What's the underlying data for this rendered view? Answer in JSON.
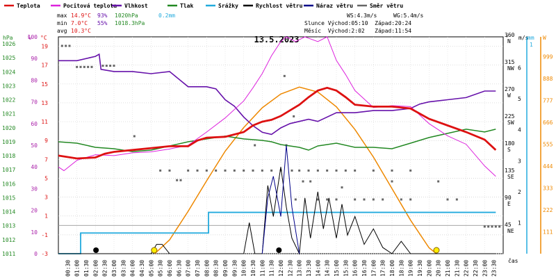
{
  "chart_data": {
    "type": "line",
    "title": "13.5.2023",
    "legend": [
      {
        "name": "Teplota",
        "color": "#dd1111"
      },
      {
        "name": "Pocitová teplota",
        "color": "#dd22dd"
      },
      {
        "name": "Vlhkost",
        "color": "#6611aa"
      },
      {
        "name": "Tlak",
        "color": "#228822"
      },
      {
        "name": "Srážky",
        "color": "#22aadd"
      },
      {
        "name": "Rychlost větru",
        "color": "#000000"
      },
      {
        "name": "Náraz větru",
        "color": "#000088"
      },
      {
        "name": "Směr větru",
        "color": "#666666"
      }
    ],
    "stats": {
      "max_label": "max",
      "max_temp": "14.9°C",
      "max_hum": "93%",
      "max_press": "1020hPa",
      "rain": "0.2mm",
      "min_label": "min",
      "min_temp": "7.0°C",
      "min_hum": "55%",
      "min_press": "1018.3hPa",
      "avg_label": "avg",
      "avg_temp": "10.3°C",
      "ws": "WS:4.3m/s",
      "wg": "WG:5.4m/s",
      "sun": "Slunce Východ:05:10  Západ:20:24",
      "moon": "Měsíc  Východ:2:02   Západ:11:54"
    },
    "axes": {
      "hpa_label": "hPa",
      "hum_label": "%",
      "temp_label": "°C",
      "hpa_ticks": [
        "1026",
        "1025",
        "1024",
        "1023",
        "1022",
        "1021",
        "1020",
        "1019",
        "1018",
        "1017",
        "1016",
        "1015",
        "1014",
        "1013",
        "1012",
        "1011"
      ],
      "hum_ticks": [
        "100",
        "90",
        "80",
        "70",
        "60",
        "50",
        "40",
        "30",
        "20",
        "10",
        "0"
      ],
      "temp_ticks": [
        "19",
        "17",
        "15",
        "13",
        "11",
        "9",
        "7",
        "5",
        "3",
        "1",
        "-1",
        "-3"
      ],
      "dir_label": "°",
      "dir_ticks": [
        {
          "v": "360",
          "d": "N"
        },
        {
          "v": "315",
          "d": "NW"
        },
        {
          "v": "270",
          "d": "W"
        },
        {
          "v": "225",
          "d": "SW"
        },
        {
          "v": "180",
          "d": "S"
        },
        {
          "v": "135",
          "d": "SE"
        },
        {
          "v": "90",
          "d": "E"
        },
        {
          "v": "45",
          "d": "NE"
        }
      ],
      "ms_label": "m/s",
      "ms_ticks": [
        "6",
        "5",
        "4",
        "3",
        "2",
        "1"
      ],
      "mm_label": "mm",
      "mm_ticks": [
        "1"
      ],
      "w_label": "W",
      "w_ticks": [
        "999",
        "888",
        "777",
        "666",
        "555",
        "444",
        "333",
        "222",
        "111"
      ],
      "time_label": "čas",
      "hours": [
        "00:30",
        "01:00",
        "01:30",
        "02:00",
        "02:30",
        "03:00",
        "03:30",
        "04:00",
        "04:30",
        "05:00",
        "05:30",
        "06:00",
        "06:30",
        "07:00",
        "07:30",
        "08:00",
        "08:30",
        "09:00",
        "09:30",
        "10:00",
        "10:30",
        "11:00",
        "11:30",
        "12:00",
        "12:30",
        "13:00",
        "13:30",
        "14:00",
        "14:30",
        "15:00",
        "15:30",
        "16:00",
        "16:30",
        "17:00",
        "17:30",
        "18:00",
        "18:30",
        "19:00",
        "19:30",
        "20:00",
        "20:30",
        "21:00",
        "21:30",
        "22:00",
        "22:30",
        "23:00",
        "23:30"
      ]
    },
    "ylim_temp": [
      -3,
      20
    ],
    "ylim_hum": [
      0,
      100
    ],
    "ylim_press": [
      1011,
      1026.5
    ],
    "ylim_wind": [
      0,
      7
    ],
    "ylim_dir": [
      0,
      360
    ],
    "ylim_solar": [
      0,
      1100
    ],
    "temperature": [
      [
        0,
        7.4
      ],
      [
        1,
        7.1
      ],
      [
        2,
        7.2
      ],
      [
        2.5,
        7.6
      ],
      [
        3,
        7.8
      ],
      [
        4,
        8.0
      ],
      [
        5,
        8.2
      ],
      [
        6,
        8.4
      ],
      [
        7,
        8.4
      ],
      [
        7.5,
        9.0
      ],
      [
        8,
        9.3
      ],
      [
        9,
        9.4
      ],
      [
        10,
        9.9
      ],
      [
        10.5,
        10.6
      ],
      [
        11,
        11.0
      ],
      [
        11.5,
        11.2
      ],
      [
        12,
        11.6
      ],
      [
        12.5,
        12.2
      ],
      [
        13,
        12.8
      ],
      [
        13.5,
        13.6
      ],
      [
        14,
        14.3
      ],
      [
        14.5,
        14.6
      ],
      [
        15,
        14.3
      ],
      [
        15.5,
        13.6
      ],
      [
        16,
        12.8
      ],
      [
        17,
        12.6
      ],
      [
        18,
        12.6
      ],
      [
        19,
        12.4
      ],
      [
        20,
        11.3
      ],
      [
        21,
        10.6
      ],
      [
        22,
        9.9
      ],
      [
        23,
        9.1
      ],
      [
        23.6,
        8.0
      ]
    ],
    "apparent": [
      [
        0,
        6.2
      ],
      [
        0.3,
        5.8
      ],
      [
        1,
        6.9
      ],
      [
        2,
        7.5
      ],
      [
        3,
        7.4
      ],
      [
        4,
        7.7
      ],
      [
        5,
        7.8
      ],
      [
        6,
        8.1
      ],
      [
        7,
        8.5
      ],
      [
        8,
        9.9
      ],
      [
        9,
        11.4
      ],
      [
        10,
        13.2
      ],
      [
        10.5,
        14.6
      ],
      [
        11,
        16.1
      ],
      [
        11.5,
        18.0
      ],
      [
        12,
        19.5
      ],
      [
        12.3,
        20.0
      ],
      [
        12.8,
        19.5
      ],
      [
        13.3,
        20.0
      ],
      [
        14,
        19.5
      ],
      [
        14.5,
        20.0
      ],
      [
        15,
        17.5
      ],
      [
        15.5,
        16.0
      ],
      [
        16,
        14.3
      ],
      [
        17,
        12.5
      ],
      [
        18,
        12.7
      ],
      [
        19,
        12.6
      ],
      [
        20,
        10.8
      ],
      [
        21,
        9.5
      ],
      [
        22,
        8.6
      ],
      [
        23,
        6.3
      ],
      [
        23.6,
        5.2
      ]
    ],
    "humidity": [
      [
        0,
        89
      ],
      [
        1,
        89
      ],
      [
        2,
        91
      ],
      [
        2.2,
        92
      ],
      [
        2.3,
        85
      ],
      [
        3,
        84
      ],
      [
        4,
        84
      ],
      [
        5,
        83
      ],
      [
        6,
        84
      ],
      [
        7,
        77
      ],
      [
        8,
        77
      ],
      [
        8.5,
        76
      ],
      [
        9,
        71
      ],
      [
        9.5,
        68
      ],
      [
        10,
        63
      ],
      [
        10.5,
        59
      ],
      [
        11,
        56
      ],
      [
        11.5,
        55
      ],
      [
        12,
        58
      ],
      [
        12.5,
        60
      ],
      [
        13,
        61
      ],
      [
        13.5,
        62
      ],
      [
        14,
        61
      ],
      [
        15,
        65
      ],
      [
        15.5,
        65
      ],
      [
        16,
        65
      ],
      [
        17,
        66
      ],
      [
        18,
        66
      ],
      [
        19,
        67
      ],
      [
        19.5,
        69
      ],
      [
        20,
        70
      ],
      [
        21,
        71
      ],
      [
        22,
        72
      ],
      [
        23,
        75
      ],
      [
        23.6,
        75
      ]
    ],
    "pressure": [
      [
        0,
        1019.0
      ],
      [
        1,
        1018.9
      ],
      [
        2,
        1018.6
      ],
      [
        3,
        1018.5
      ],
      [
        4,
        1018.3
      ],
      [
        5,
        1018.4
      ],
      [
        6,
        1018.7
      ],
      [
        7,
        1019.0
      ],
      [
        8,
        1019.2
      ],
      [
        9,
        1019.4
      ],
      [
        9.5,
        1019.3
      ],
      [
        10,
        1019.2
      ],
      [
        11,
        1019.1
      ],
      [
        11.5,
        1019.0
      ],
      [
        12,
        1018.8
      ],
      [
        12.5,
        1018.7
      ],
      [
        13,
        1018.6
      ],
      [
        13.5,
        1018.4
      ],
      [
        14,
        1018.7
      ],
      [
        15,
        1018.9
      ],
      [
        16,
        1018.6
      ],
      [
        17,
        1018.6
      ],
      [
        18,
        1018.5
      ],
      [
        19,
        1018.9
      ],
      [
        20,
        1019.3
      ],
      [
        21,
        1019.6
      ],
      [
        22,
        1019.9
      ],
      [
        23,
        1019.7
      ],
      [
        23.6,
        1019.9
      ]
    ],
    "rain_mm": [
      [
        0,
        0
      ],
      [
        1,
        0
      ],
      [
        1.2,
        0.1
      ],
      [
        3,
        0.1
      ],
      [
        5,
        0.1
      ],
      [
        8,
        0.1
      ],
      [
        8.1,
        0.2
      ],
      [
        12,
        0.2
      ],
      [
        18,
        0.2
      ],
      [
        23.6,
        0.2
      ]
    ],
    "wind_speed": [
      [
        0,
        0
      ],
      [
        5,
        0
      ],
      [
        5.3,
        0.3
      ],
      [
        5.6,
        0.3
      ],
      [
        6,
        0
      ],
      [
        10,
        0
      ],
      [
        10.3,
        1.0
      ],
      [
        10.6,
        0
      ],
      [
        11,
        0
      ],
      [
        11.3,
        2.2
      ],
      [
        11.6,
        1.2
      ],
      [
        12,
        2.8
      ],
      [
        12.3,
        1.5
      ],
      [
        12.6,
        0.5
      ],
      [
        13,
        0
      ],
      [
        13.3,
        1.8
      ],
      [
        13.6,
        0.5
      ],
      [
        14,
        2.0
      ],
      [
        14.3,
        0.8
      ],
      [
        14.6,
        1.8
      ],
      [
        15,
        0.5
      ],
      [
        15.3,
        1.6
      ],
      [
        15.6,
        0.6
      ],
      [
        16,
        1.2
      ],
      [
        16.5,
        0.3
      ],
      [
        17,
        0.8
      ],
      [
        17.5,
        0.2
      ],
      [
        18,
        0
      ],
      [
        18.5,
        0.4
      ],
      [
        19,
        0
      ],
      [
        23.6,
        0
      ]
    ],
    "wind_gust": [
      [
        11,
        0
      ],
      [
        11.3,
        1.8
      ],
      [
        11.6,
        2.5
      ],
      [
        12,
        1.2
      ],
      [
        12.3,
        3.5
      ],
      [
        12.6,
        1.5
      ],
      [
        13,
        0
      ]
    ],
    "wind_dir_points": [
      [
        0.2,
        345
      ],
      [
        0.4,
        345
      ],
      [
        0.6,
        345
      ],
      [
        1,
        310
      ],
      [
        1.2,
        310
      ],
      [
        1.4,
        310
      ],
      [
        1.6,
        310
      ],
      [
        1.8,
        310
      ],
      [
        2.4,
        312
      ],
      [
        2.6,
        312
      ],
      [
        2.8,
        312
      ],
      [
        3,
        312
      ],
      [
        4.1,
        195
      ],
      [
        5.5,
        138
      ],
      [
        6,
        138
      ],
      [
        6.4,
        122
      ],
      [
        6.6,
        122
      ],
      [
        7,
        138
      ],
      [
        7.5,
        138
      ],
      [
        8,
        138
      ],
      [
        8.5,
        138
      ],
      [
        9,
        138
      ],
      [
        9.5,
        138
      ],
      [
        10,
        138
      ],
      [
        10.5,
        138
      ],
      [
        11,
        138
      ],
      [
        11.5,
        138
      ],
      [
        12,
        138
      ],
      [
        12.2,
        295
      ],
      [
        12.6,
        138
      ],
      [
        13,
        138
      ],
      [
        13.5,
        138
      ],
      [
        14,
        138
      ],
      [
        14.5,
        138
      ],
      [
        15,
        138
      ],
      [
        15.5,
        138
      ],
      [
        16,
        138
      ],
      [
        17,
        138
      ],
      [
        18,
        138
      ],
      [
        19,
        138
      ],
      [
        10.6,
        180
      ],
      [
        12.3,
        180
      ],
      [
        12.7,
        228
      ],
      [
        12.8,
        90
      ],
      [
        13.2,
        120
      ],
      [
        13.6,
        120
      ],
      [
        14,
        90
      ],
      [
        14.5,
        90
      ],
      [
        15,
        90
      ],
      [
        15.3,
        110
      ],
      [
        16,
        90
      ],
      [
        16.5,
        90
      ],
      [
        17,
        90
      ],
      [
        17.5,
        90
      ],
      [
        18,
        120
      ],
      [
        18.5,
        90
      ],
      [
        19,
        90
      ],
      [
        20.5,
        120
      ],
      [
        21,
        90
      ],
      [
        21.5,
        90
      ],
      [
        23,
        45
      ],
      [
        23.2,
        45
      ],
      [
        23.4,
        45
      ],
      [
        23.6,
        45
      ],
      [
        23.8,
        45
      ]
    ],
    "solar_w": [
      [
        5.2,
        0
      ],
      [
        6,
        70
      ],
      [
        7,
        215
      ],
      [
        8,
        370
      ],
      [
        9,
        520
      ],
      [
        10,
        640
      ],
      [
        11,
        740
      ],
      [
        12,
        810
      ],
      [
        13,
        845
      ],
      [
        14,
        820
      ],
      [
        15,
        745
      ],
      [
        16,
        630
      ],
      [
        17,
        490
      ],
      [
        18,
        330
      ],
      [
        19,
        170
      ],
      [
        20,
        30
      ],
      [
        20.4,
        0
      ]
    ],
    "sun_markers": [
      5.17,
      20.4
    ],
    "moon_markers": [
      2.03,
      11.9
    ]
  }
}
